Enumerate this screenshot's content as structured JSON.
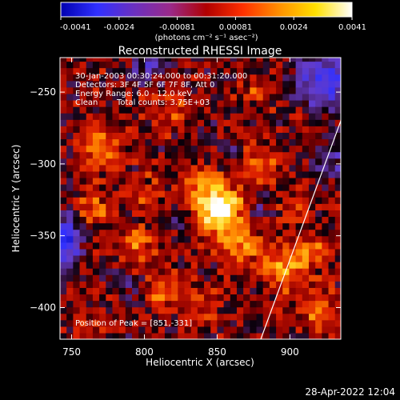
{
  "colorbar": {
    "ticks": [
      "-0.0041",
      "-0.0024",
      "-0.00081",
      "0.00081",
      "0.0024",
      "0.0041"
    ],
    "unit_label": "(photons cm⁻² s⁻¹ asec⁻²)",
    "stops": [
      "#0000b0",
      "#3030ff",
      "#6a30c0",
      "#9a2a8a",
      "#b00000",
      "#ff3000",
      "#ff9000",
      "#ffe000",
      "#ffffff"
    ]
  },
  "annotations": {
    "time_range": "30-Jan-2003 00:30:24.000 to 00:31:20.000",
    "detectors": "Detectors: 3F 4F 5F 6F 7F 8F, Att 0",
    "energy": "Energy Range: 6.0 - 12.0 keV",
    "clean": "Clean",
    "counts": "Total counts: 3.75E+03",
    "peak": "Position of Peak = [851,-331]"
  },
  "footer": {
    "timestamp": "28-Apr-2022 12:04"
  },
  "chart_data": {
    "type": "heatmap",
    "title": "Reconstructed RHESSI Image",
    "xlabel": "Heliocentric X (arcsec)",
    "ylabel": "Heliocentric Y (arcsec)",
    "xlim": [
      742,
      935
    ],
    "ylim": [
      -422,
      -226
    ],
    "xticks": [
      750,
      800,
      850,
      900
    ],
    "yticks": [
      -250,
      -300,
      -350,
      -400
    ],
    "zlim": [
      -0.0041,
      0.0041
    ],
    "peak": {
      "x": 851,
      "y": -331
    },
    "limb_line": [
      [
        880,
        -422
      ],
      [
        935,
        -270
      ]
    ],
    "sources": [
      {
        "x": 851,
        "y": -331,
        "sx": 11,
        "sy": 11,
        "a": 0.0041
      },
      {
        "x": 835,
        "y": -312,
        "sx": 10,
        "sy": 9,
        "a": 0.0016
      },
      {
        "x": 866,
        "y": -357,
        "sx": 10,
        "sy": 10,
        "a": 0.0018
      },
      {
        "x": 898,
        "y": -372,
        "sx": 11,
        "sy": 11,
        "a": 0.0019
      },
      {
        "x": 770,
        "y": -288,
        "sx": 10,
        "sy": 14,
        "a": 0.0018
      },
      {
        "x": 765,
        "y": -332,
        "sx": 8,
        "sy": 8,
        "a": 0.0016
      },
      {
        "x": 795,
        "y": -356,
        "sx": 9,
        "sy": 9,
        "a": 0.0016
      },
      {
        "x": 812,
        "y": -387,
        "sx": 9,
        "sy": 8,
        "a": 0.0015
      },
      {
        "x": 918,
        "y": -402,
        "sx": 10,
        "sy": 10,
        "a": 0.0016
      },
      {
        "x": 880,
        "y": -300,
        "sx": 10,
        "sy": 10,
        "a": 0.0012
      },
      {
        "x": 905,
        "y": -330,
        "sx": 8,
        "sy": 8,
        "a": 0.001
      },
      {
        "x": 840,
        "y": -395,
        "sx": 10,
        "sy": 8,
        "a": 0.0012
      },
      {
        "x": 820,
        "y": -262,
        "sx": 10,
        "sy": 8,
        "a": 0.0011
      },
      {
        "x": 880,
        "y": -250,
        "sx": 10,
        "sy": 8,
        "a": 0.001
      },
      {
        "x": 800,
        "y": -320,
        "sx": 8,
        "sy": 8,
        "a": 0.0011
      },
      {
        "x": 915,
        "y": -360,
        "sx": 8,
        "sy": 8,
        "a": 0.0013
      },
      {
        "x": 760,
        "y": -405,
        "sx": 8,
        "sy": 8,
        "a": 0.0007
      },
      {
        "x": 925,
        "y": -240,
        "sx": 15,
        "sy": 14,
        "a": -0.0026
      },
      {
        "x": 745,
        "y": -352,
        "sx": 8,
        "sy": 11,
        "a": -0.0036
      },
      {
        "x": 802,
        "y": -232,
        "sx": 10,
        "sy": 8,
        "a": -0.0015
      },
      {
        "x": 930,
        "y": -300,
        "sx": 8,
        "sy": 12,
        "a": -0.0011
      },
      {
        "x": 790,
        "y": -385,
        "sx": 7,
        "sy": 7,
        "a": -0.001
      },
      {
        "x": 825,
        "y": -338,
        "sx": 7,
        "sy": 7,
        "a": -0.0009
      },
      {
        "x": 880,
        "y": -330,
        "sx": 6,
        "sy": 7,
        "a": -0.0008
      },
      {
        "x": 857,
        "y": -290,
        "sx": 6,
        "sy": 6,
        "a": -0.0008
      }
    ]
  }
}
